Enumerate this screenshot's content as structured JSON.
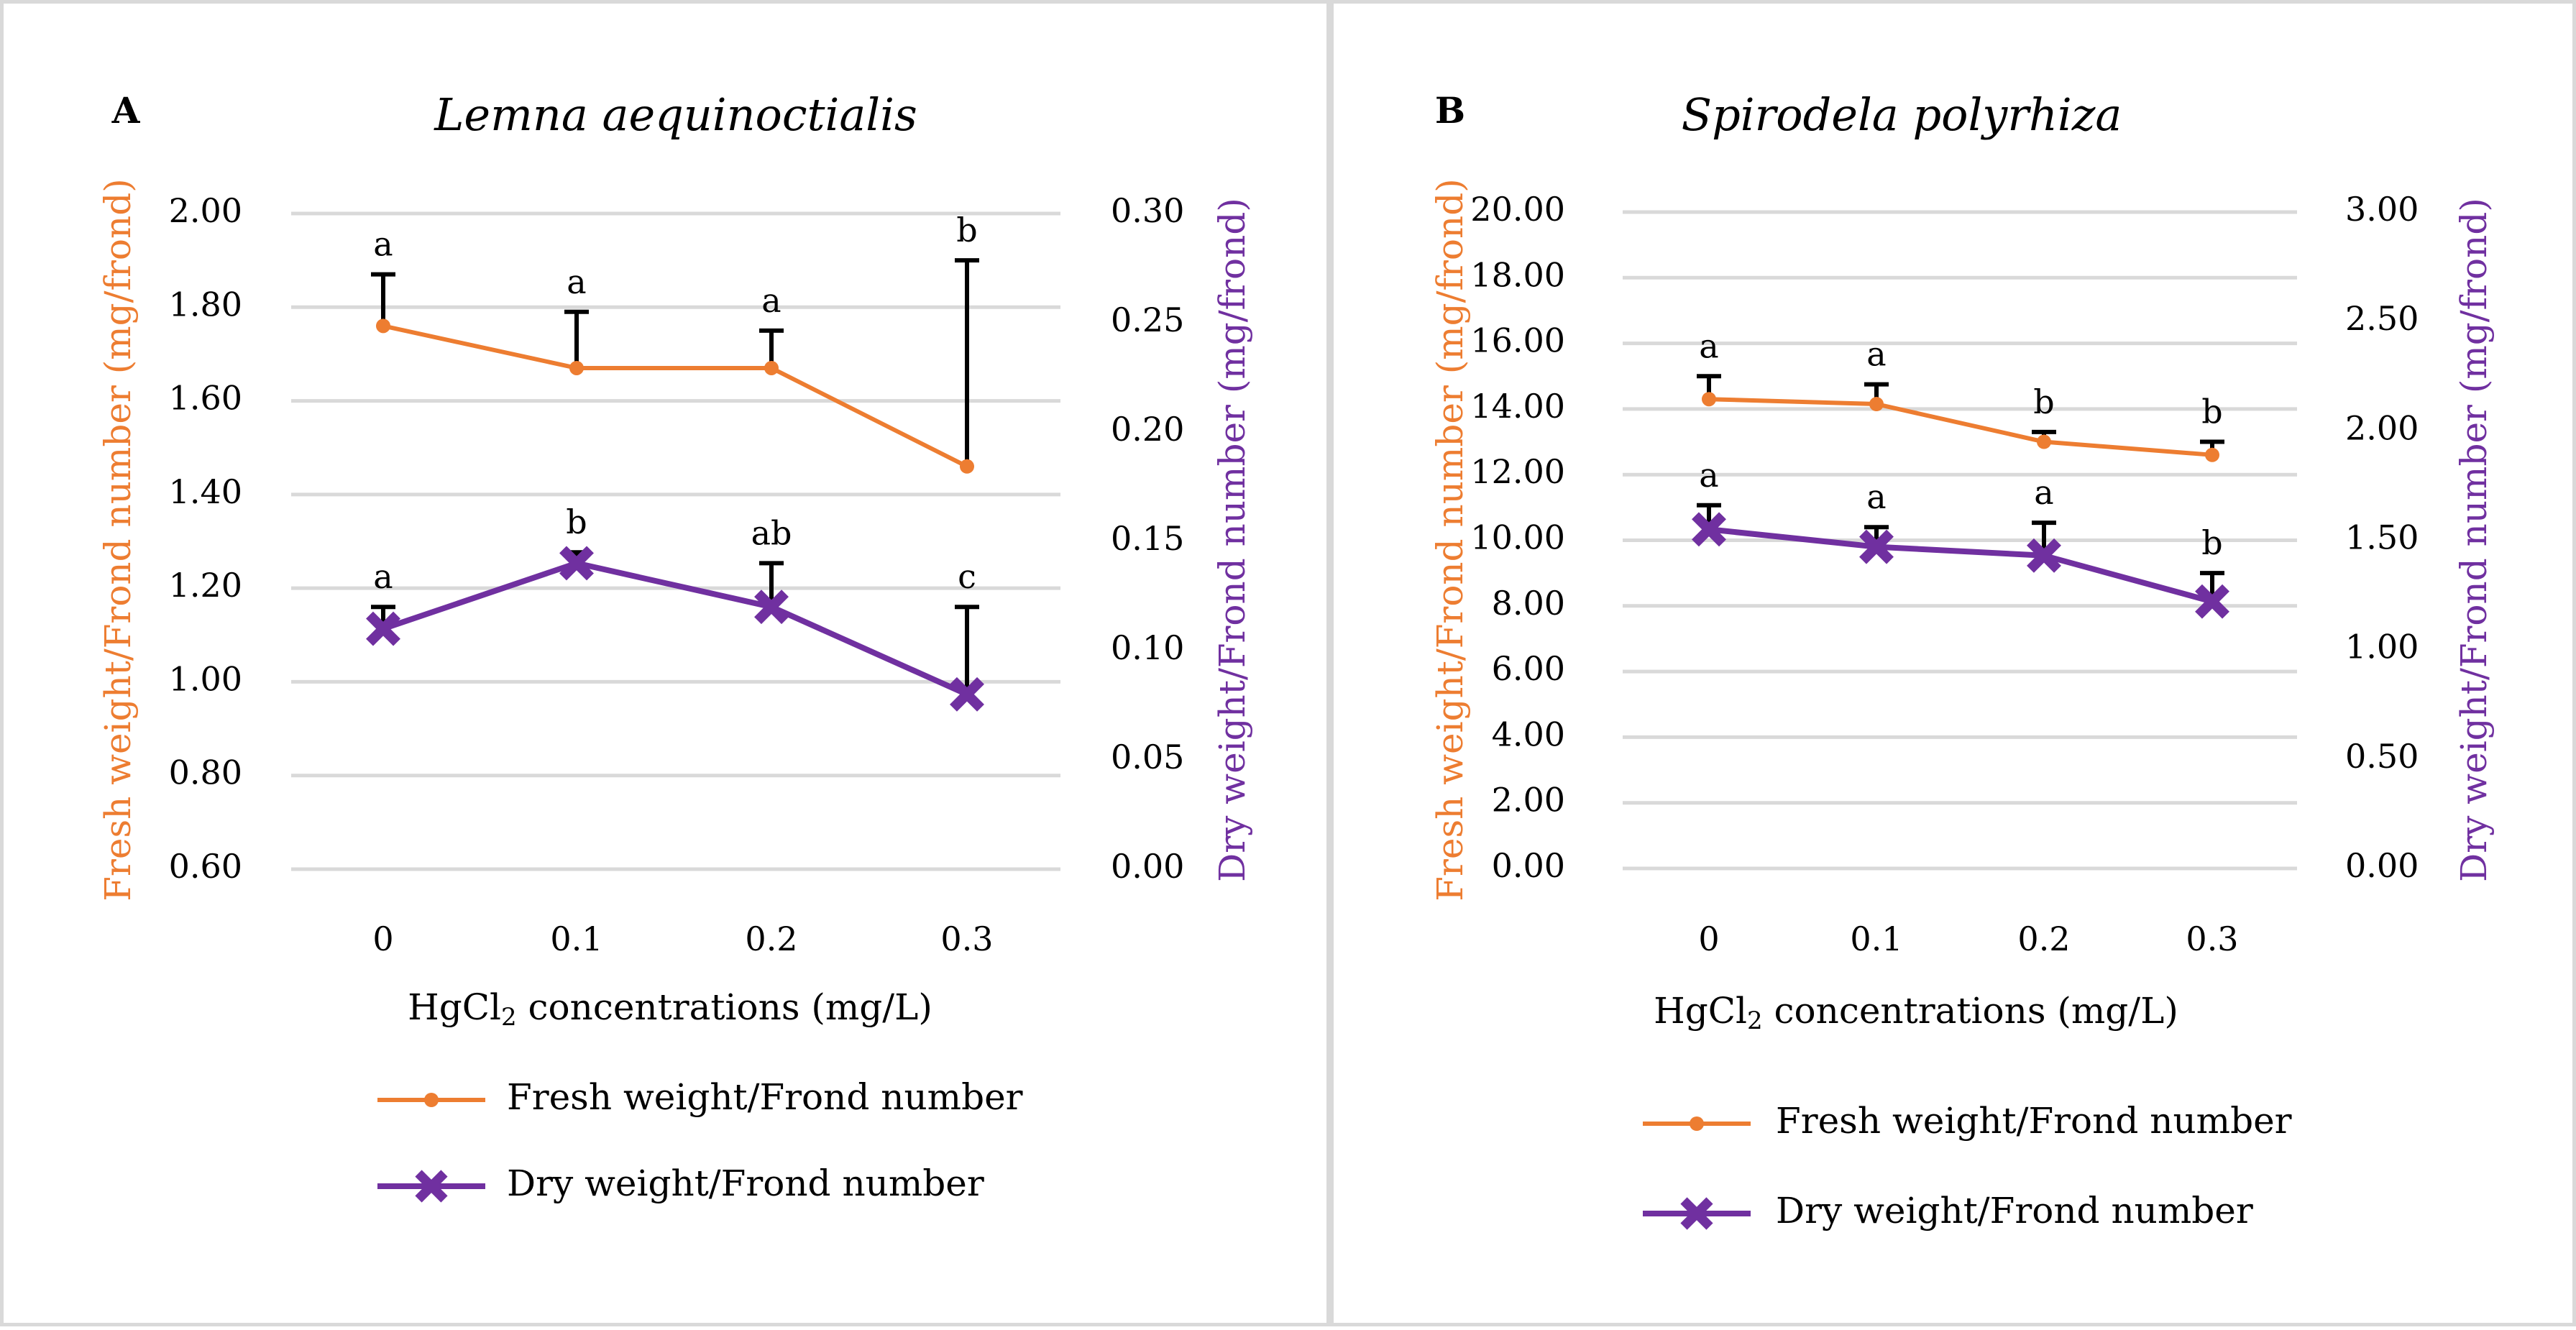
{
  "colors": {
    "fresh": "#ED7D31",
    "dry": "#7030A0",
    "grid": "#d9d9d9",
    "error": "#000000"
  },
  "chart_data": [
    {
      "type": "line",
      "panel_label": "A",
      "title": "Lemna aequinoctialis",
      "xlabel_main": "HgCl",
      "xlabel_sub": "2",
      "xlabel_rest": " concentrations (mg/L)",
      "categories": [
        "0",
        "0.1",
        "0.2",
        "0.3"
      ],
      "ylabel_left": "Fresh weight/Frond number (mg/frond)",
      "ylabel_right": "Dry weight/Frond number (mg/frond)",
      "ylim_left": [
        0.6,
        2.0
      ],
      "ylim_right": [
        0.0,
        0.3
      ],
      "yticks_left": [
        "0.60",
        "0.80",
        "1.00",
        "1.20",
        "1.40",
        "1.60",
        "1.80",
        "2.00"
      ],
      "yticks_right": [
        "0.00",
        "0.05",
        "0.10",
        "0.15",
        "0.20",
        "0.25",
        "0.30"
      ],
      "series": [
        {
          "name": "Fresh weight/Frond number",
          "axis": "left",
          "marker": "dot",
          "values": [
            1.76,
            1.67,
            1.67,
            1.46
          ],
          "error_upper": [
            1.87,
            1.79,
            1.75,
            1.9
          ],
          "letters": [
            "a",
            "a",
            "a",
            "b"
          ]
        },
        {
          "name": "Dry weight/Frond number",
          "axis": "right",
          "marker": "x",
          "values": [
            0.11,
            0.14,
            0.12,
            0.08
          ],
          "error_upper": [
            0.12,
            0.145,
            0.14,
            0.12
          ],
          "letters": [
            "a",
            "b",
            "ab",
            "c"
          ]
        }
      ]
    },
    {
      "type": "line",
      "panel_label": "B",
      "title": "Spirodela polyrhiza",
      "xlabel_main": "HgCl",
      "xlabel_sub": "2",
      "xlabel_rest": " concentrations (mg/L)",
      "categories": [
        "0",
        "0.1",
        "0.2",
        "0.3"
      ],
      "ylabel_left": "Fresh weight/Frond number (mg/frond)",
      "ylabel_right": "Dry weight/Frond number (mg/frond)",
      "ylim_left": [
        0.0,
        20.0
      ],
      "ylim_right": [
        0.0,
        3.0
      ],
      "yticks_left": [
        "0.00",
        "2.00",
        "4.00",
        "6.00",
        "8.00",
        "10.00",
        "12.00",
        "14.00",
        "16.00",
        "18.00",
        "20.00"
      ],
      "yticks_right": [
        "0.00",
        "0.50",
        "1.00",
        "1.50",
        "2.00",
        "2.50",
        "3.00"
      ],
      "series": [
        {
          "name": "Fresh weight/Frond number",
          "axis": "left",
          "marker": "dot",
          "values": [
            14.3,
            14.15,
            13.0,
            12.6
          ],
          "error_upper": [
            15.0,
            14.75,
            13.3,
            13.0
          ],
          "letters": [
            "a",
            "a",
            "b",
            "b"
          ]
        },
        {
          "name": "Dry weight/Frond number",
          "axis": "right",
          "marker": "x",
          "values": [
            1.55,
            1.47,
            1.43,
            1.22
          ],
          "error_upper": [
            1.66,
            1.56,
            1.58,
            1.35
          ],
          "letters": [
            "a",
            "a",
            "a",
            "b"
          ]
        }
      ]
    }
  ]
}
